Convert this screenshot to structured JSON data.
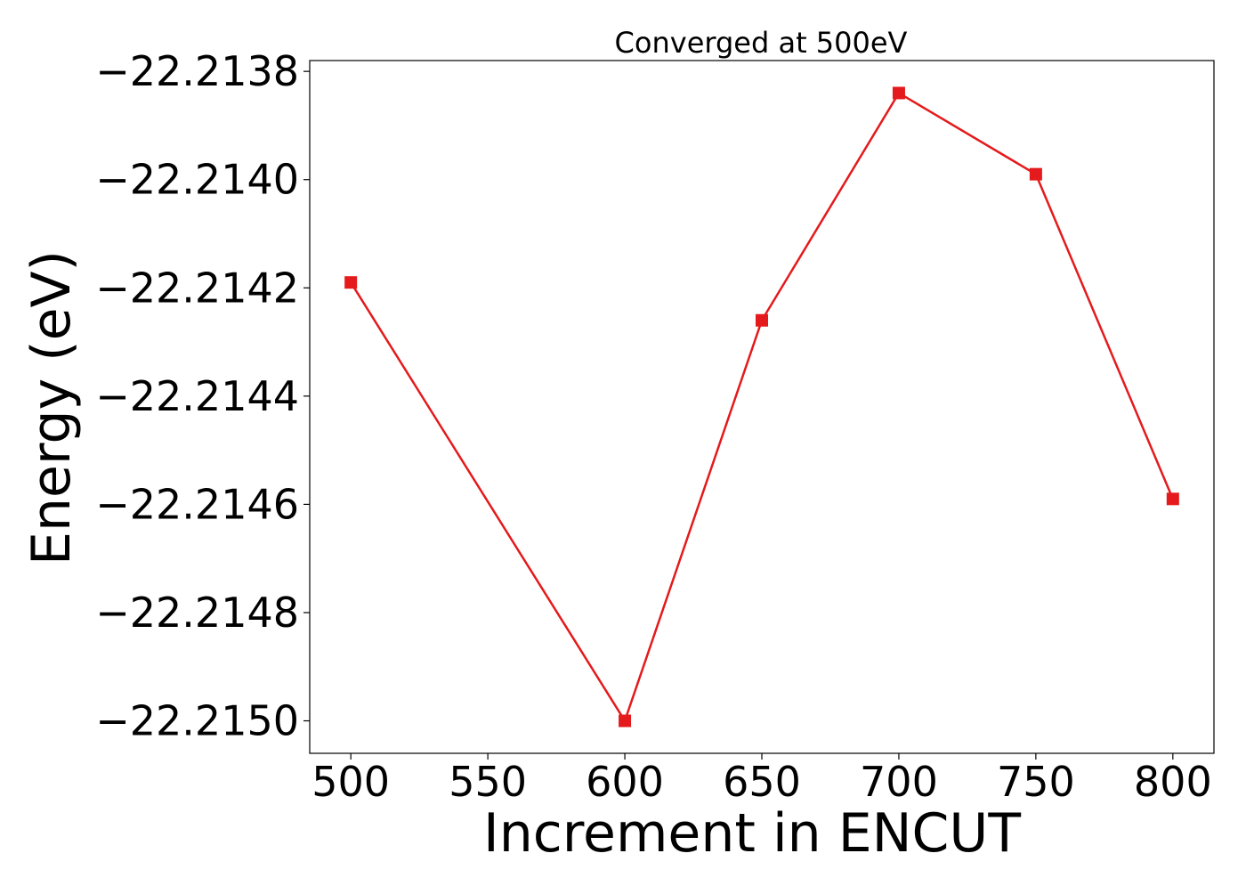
{
  "chart_data": {
    "type": "line",
    "title": "Converged at 500eV",
    "xlabel": "Increment in ENCUT",
    "ylabel": "Energy (eV)",
    "x": [
      500,
      600,
      650,
      700,
      750,
      800
    ],
    "series": [
      {
        "values": [
          -22.21419,
          -22.215,
          -22.21426,
          -22.21384,
          -22.21399,
          -22.21459
        ],
        "color": "#e41a1c",
        "marker": "square"
      }
    ],
    "xlim": [
      485,
      815
    ],
    "ylim": [
      -22.21506,
      -22.21378
    ],
    "xticks": [
      500,
      550,
      600,
      650,
      700,
      750,
      800
    ],
    "xtick_labels": [
      "500",
      "550",
      "600",
      "650",
      "700",
      "750",
      "800"
    ],
    "yticks": [
      -22.2138,
      -22.214,
      -22.2142,
      -22.2144,
      -22.2146,
      -22.2148,
      -22.215
    ],
    "ytick_labels": [
      "−22.2138",
      "−22.2140",
      "−22.2142",
      "−22.2144",
      "−22.2146",
      "−22.2148",
      "−22.2150"
    ],
    "grid": false,
    "legend": false
  }
}
